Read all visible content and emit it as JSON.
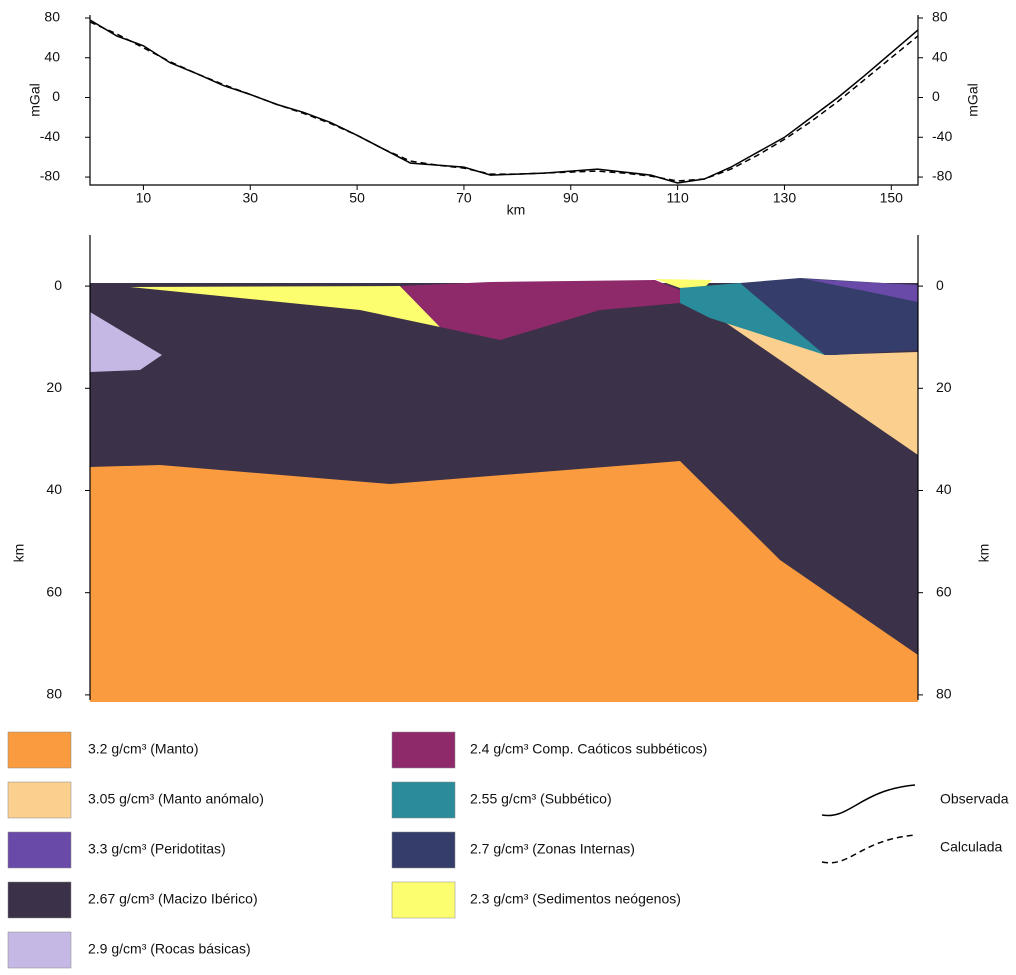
{
  "chart_data": [
    {
      "type": "line",
      "xlabel": "km",
      "ylabel": "mGal",
      "x": [
        0,
        5,
        10,
        15,
        20,
        25,
        30,
        35,
        40,
        45,
        50,
        55,
        60,
        65,
        70,
        75,
        80,
        85,
        90,
        95,
        100,
        105,
        110,
        115,
        120,
        125,
        130,
        135,
        140,
        145,
        150,
        155
      ],
      "series": [
        {
          "name": "Observada",
          "color": "#000000",
          "style": "solid",
          "values": [
            78,
            62,
            52,
            35,
            24,
            12,
            3,
            -7,
            -15,
            -25,
            -38,
            -52,
            -66,
            -68,
            -70,
            -78,
            -77,
            -76,
            -74,
            -72,
            -75,
            -78,
            -86,
            -82,
            -70,
            -55,
            -40,
            -20,
            0,
            22,
            45,
            68
          ]
        },
        {
          "name": "Calculada",
          "color": "#000000",
          "style": "dashed",
          "values": [
            76,
            64,
            50,
            36,
            24,
            13,
            3,
            -7,
            -16,
            -26,
            -38,
            -52,
            -64,
            -68,
            -71,
            -77,
            -77,
            -76,
            -75,
            -74,
            -76,
            -79,
            -84,
            -82,
            -72,
            -58,
            -42,
            -24,
            -4,
            18,
            40,
            62
          ]
        }
      ],
      "xlim": [
        0,
        155
      ],
      "xticks": [
        10,
        30,
        50,
        70,
        90,
        110,
        130,
        150
      ],
      "ylim": [
        -88,
        83
      ],
      "yticks": [
        -80,
        -40,
        0,
        40,
        80
      ]
    },
    {
      "type": "cross-section",
      "ylabel": "km",
      "ylim": [
        -10,
        81
      ],
      "yticks": [
        0,
        20,
        40,
        60,
        80
      ],
      "layers": [
        {
          "name": "3.2 g/cm³ (Manto)",
          "color": "#f99b3e"
        },
        {
          "name": "3.05 g/cm³ (Manto anómalo)",
          "color": "#fbd08f"
        },
        {
          "name": "3.3 g/cm³ (Peridotitas)",
          "color": "#6a4aa8"
        },
        {
          "name": "2.67 g/cm³ (Macizo Ibérico)",
          "color": "#3b3148"
        },
        {
          "name": "2.9 g/cm³ (Rocas básicas)",
          "color": "#c5b8e5"
        },
        {
          "name": "2.4 g/cm³ Comp. Caóticos subbéticos)",
          "color": "#8e2a6a"
        },
        {
          "name": "2.55 g/cm³ (Subbético)",
          "color": "#2a8c9a"
        },
        {
          "name": "2.7 g/cm³ (Zonas Internas)",
          "color": "#353d6b"
        },
        {
          "name": "2.3 g/cm³ (Sedimentos neógenos)",
          "color": "#fdfd70"
        }
      ]
    }
  ]
}
